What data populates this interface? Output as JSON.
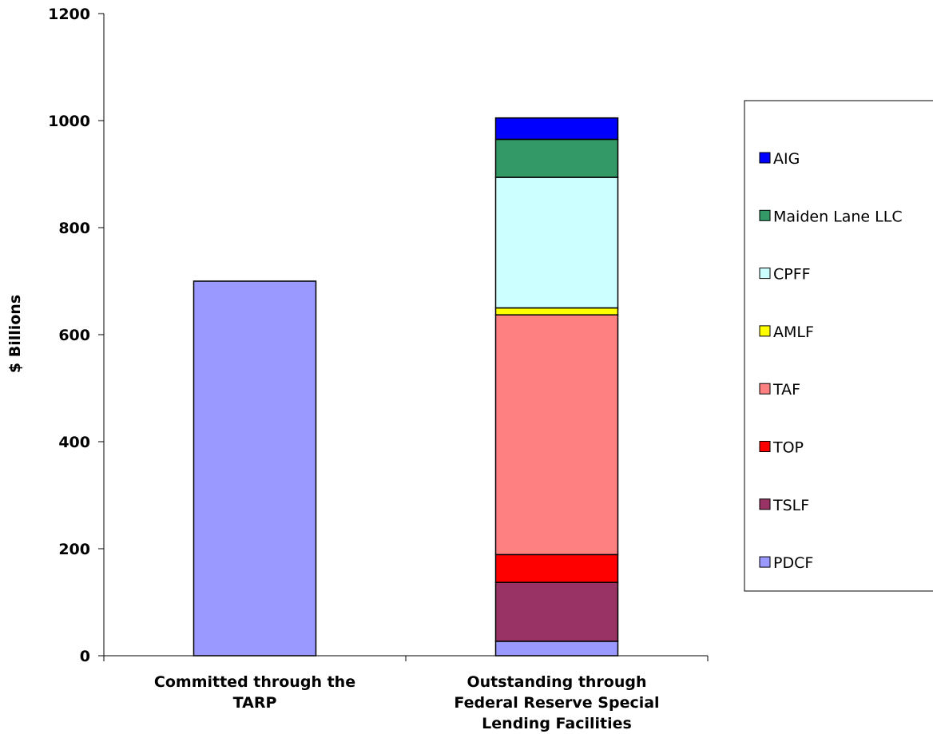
{
  "chart_data": {
    "type": "bar",
    "stacked": true,
    "ylabel": "$ Billions",
    "xlabel": "",
    "ylim": [
      0,
      1200
    ],
    "yticks": [
      0,
      200,
      400,
      600,
      800,
      1000,
      1200
    ],
    "categories": [
      [
        "Committed through the",
        "TARP"
      ],
      [
        "Outstanding through",
        "Federal Reserve Special",
        "Lending Facilities"
      ]
    ],
    "legend_position": "right",
    "series": [
      {
        "name": "PDCF",
        "color": "#9999ff",
        "values": [
          700,
          27
        ]
      },
      {
        "name": "TSLF",
        "color": "#993366",
        "values": [
          0,
          110
        ]
      },
      {
        "name": "TOP",
        "color": "#ff0000",
        "values": [
          0,
          52
        ]
      },
      {
        "name": "TAF",
        "color": "#ff8080",
        "values": [
          0,
          448
        ]
      },
      {
        "name": "AMLF",
        "color": "#ffff00",
        "values": [
          0,
          13
        ]
      },
      {
        "name": "CPFF",
        "color": "#ccffff",
        "values": [
          0,
          244
        ]
      },
      {
        "name": "Maiden Lane LLC",
        "color": "#339966",
        "values": [
          0,
          71
        ]
      },
      {
        "name": "AIG",
        "color": "#0000ff",
        "values": [
          0,
          40
        ]
      }
    ]
  }
}
